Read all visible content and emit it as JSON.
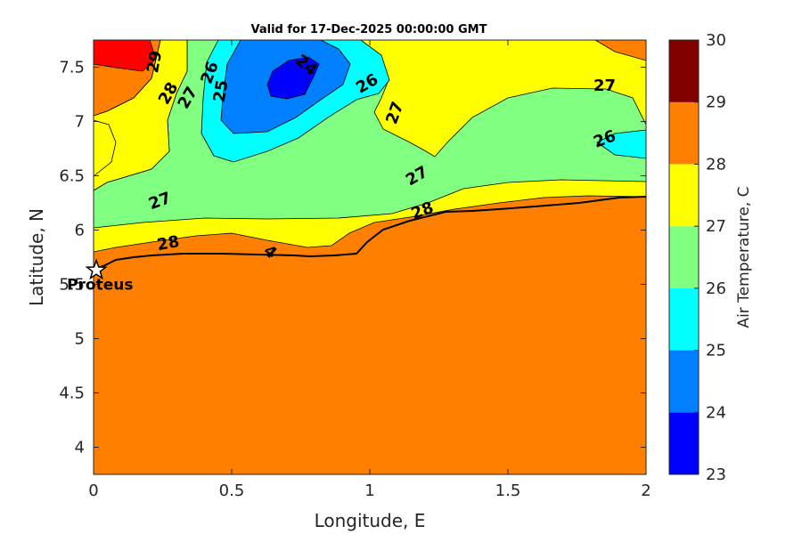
{
  "chart_data": {
    "type": "heatmap",
    "title": "Valid for 17-Dec-2025 00:00:00 GMT",
    "xlabel": "Longitude, E",
    "ylabel": "Latitude, N",
    "xlim": [
      0,
      2
    ],
    "ylim": [
      3.75,
      7.75
    ],
    "x_ticks": [
      "0",
      "0.5",
      "1",
      "1.5",
      "2"
    ],
    "y_ticks": [
      "4",
      "4.5",
      "5",
      "5.5",
      "6",
      "6.5",
      "7",
      "7.5"
    ],
    "colorbar": {
      "label": "Air Temperature, C",
      "range": [
        23,
        30
      ],
      "ticks": [
        "23",
        "24",
        "25",
        "26",
        "27",
        "28",
        "29",
        "30"
      ],
      "bands": [
        {
          "from": 23,
          "to": 24,
          "color": "#0000ff"
        },
        {
          "from": 24,
          "to": 25,
          "color": "#0080ff"
        },
        {
          "from": 25,
          "to": 26,
          "color": "#00ffff"
        },
        {
          "from": 26,
          "to": 27,
          "color": "#80ff80"
        },
        {
          "from": 27,
          "to": 28,
          "color": "#ffff00"
        },
        {
          "from": 28,
          "to": 29,
          "color": "#ff8000"
        },
        {
          "from": 29,
          "to": 30,
          "color": "#ff0000"
        }
      ],
      "top_color": "#800000"
    },
    "contour_labels": [
      {
        "text": "29",
        "lon": 0.22,
        "lat": 7.55,
        "angle": -80
      },
      {
        "text": "28",
        "lon": 0.27,
        "lat": 7.26,
        "angle": -60
      },
      {
        "text": "27",
        "lon": 0.34,
        "lat": 7.22,
        "angle": -60
      },
      {
        "text": "26",
        "lon": 0.42,
        "lat": 7.45,
        "angle": -70
      },
      {
        "text": "25",
        "lon": 0.46,
        "lat": 7.28,
        "angle": -80
      },
      {
        "text": "24",
        "lon": 0.77,
        "lat": 7.52,
        "angle": 40
      },
      {
        "text": "26",
        "lon": 0.99,
        "lat": 7.35,
        "angle": -30
      },
      {
        "text": "27",
        "lon": 1.09,
        "lat": 7.08,
        "angle": -70
      },
      {
        "text": "27",
        "lon": 1.85,
        "lat": 7.33,
        "angle": 0
      },
      {
        "text": "26",
        "lon": 1.85,
        "lat": 6.84,
        "angle": -20
      },
      {
        "text": "27",
        "lon": 1.17,
        "lat": 6.5,
        "angle": -30
      },
      {
        "text": "27",
        "lon": 0.24,
        "lat": 6.27,
        "angle": -20
      },
      {
        "text": "28",
        "lon": 1.19,
        "lat": 6.18,
        "angle": -20
      },
      {
        "text": "28",
        "lon": 0.27,
        "lat": 5.88,
        "angle": -10
      },
      {
        "text": "4",
        "lon": 0.64,
        "lat": 5.8,
        "angle": 40
      }
    ],
    "marker": {
      "label": "Proteus",
      "lon": 0.01,
      "lat": 5.63
    }
  }
}
